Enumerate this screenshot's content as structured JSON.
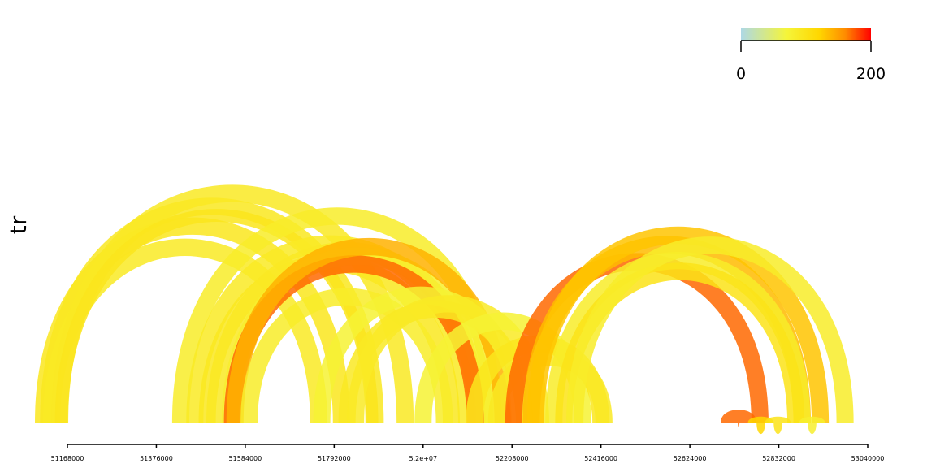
{
  "chart_data": {
    "type": "arc",
    "ylabel": "tr",
    "xlim": [
      51120000,
      53040000
    ],
    "x_ticks": [
      {
        "value": 51168000,
        "label": "51168000"
      },
      {
        "value": 51376000,
        "label": "51376000"
      },
      {
        "value": 51584000,
        "label": "51584000"
      },
      {
        "value": 51792000,
        "label": "51792000"
      },
      {
        "value": 52000000,
        "label": "5.2e+07"
      },
      {
        "value": 52208000,
        "label": "52208000"
      },
      {
        "value": 52416000,
        "label": "52416000"
      },
      {
        "value": 52624000,
        "label": "52624000"
      },
      {
        "value": 52832000,
        "label": "52832000"
      },
      {
        "value": 53040000,
        "label": "53040000"
      }
    ],
    "color_scale": {
      "min": 0,
      "max": 200,
      "min_label": "0",
      "max_label": "200",
      "colors": [
        "#add8e6",
        "#f5f53a",
        "#ffd700",
        "#ff8c00",
        "#ff0000"
      ]
    },
    "arcs": [
      {
        "start": 51112000,
        "end": 51809000,
        "width": 40000,
        "value": 95
      },
      {
        "start": 51124000,
        "end": 51888000,
        "width": 40000,
        "value": 92
      },
      {
        "start": 51131000,
        "end": 51756000,
        "width": 40000,
        "value": 88
      },
      {
        "start": 51150000,
        "end": 51958000,
        "width": 40000,
        "value": 90
      },
      {
        "start": 51154000,
        "end": 51880000,
        "width": 30000,
        "value": 96
      },
      {
        "start": 51433000,
        "end": 52164000,
        "width": 40000,
        "value": 85
      },
      {
        "start": 51466000,
        "end": 52102000,
        "width": 40000,
        "value": 88
      },
      {
        "start": 51495000,
        "end": 52066000,
        "width": 40000,
        "value": 92
      },
      {
        "start": 51513000,
        "end": 52126000,
        "width": 40000,
        "value": 90
      },
      {
        "start": 51549000,
        "end": 52144000,
        "width": 40000,
        "value": 80
      },
      {
        "start": 51554000,
        "end": 52122000,
        "width": 40000,
        "value": 170
      },
      {
        "start": 51560000,
        "end": 52187000,
        "width": 40000,
        "value": 140
      },
      {
        "start": 51593000,
        "end": 52050000,
        "width": 40000,
        "value": 85
      },
      {
        "start": 51763000,
        "end": 52225000,
        "width": 40000,
        "value": 75
      },
      {
        "start": 51822000,
        "end": 52237000,
        "width": 40000,
        "value": 90
      },
      {
        "start": 51842000,
        "end": 52275000,
        "width": 40000,
        "value": 88
      },
      {
        "start": 52000000,
        "end": 52374000,
        "width": 40000,
        "value": 75
      },
      {
        "start": 52120000,
        "end": 52416000,
        "width": 40000,
        "value": 95
      },
      {
        "start": 52172000,
        "end": 52423000,
        "width": 40000,
        "value": 90
      },
      {
        "start": 52212000,
        "end": 52788000,
        "width": 40000,
        "value": 170
      },
      {
        "start": 52253000,
        "end": 52887000,
        "width": 40000,
        "value": 135
      },
      {
        "start": 52263000,
        "end": 52929000,
        "width": 40000,
        "value": 130
      },
      {
        "start": 52306000,
        "end": 52886000,
        "width": 40000,
        "value": 85
      },
      {
        "start": 52329000,
        "end": 52872000,
        "width": 40000,
        "value": 100
      },
      {
        "start": 52355000,
        "end": 52987000,
        "width": 40000,
        "value": 85
      },
      {
        "start": 52716000,
        "end": 52760000,
        "width": 40000,
        "value": 170
      },
      {
        "start": 52780000,
        "end": 52800000,
        "width": 40000,
        "value": 120
      },
      {
        "start": 52820000,
        "end": 52840000,
        "width": 40000,
        "value": 100
      },
      {
        "start": 52900000,
        "end": 52920000,
        "width": 40000,
        "value": 80
      }
    ]
  }
}
